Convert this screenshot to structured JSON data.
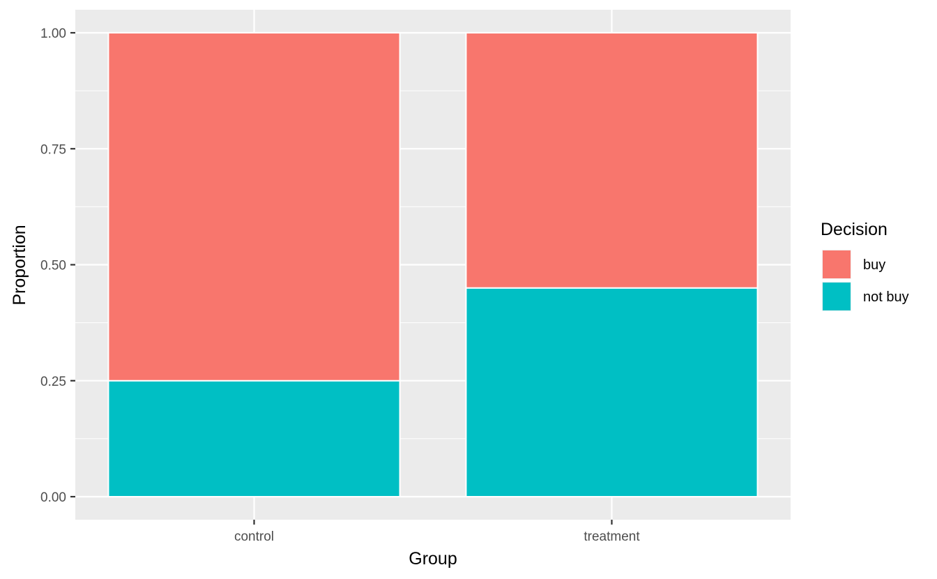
{
  "chart_data": {
    "type": "bar",
    "stacked": true,
    "position": "fill",
    "categories": [
      "control",
      "treatment"
    ],
    "series": [
      {
        "name": "buy",
        "values": [
          0.75,
          0.55
        ],
        "color": "#F8766D"
      },
      {
        "name": "not buy",
        "values": [
          0.25,
          0.45
        ],
        "color": "#00BFC4"
      }
    ],
    "xlabel": "Group",
    "ylabel": "Proportion",
    "ylim": [
      0,
      1
    ],
    "yticks": [
      0.0,
      0.25,
      0.5,
      0.75,
      1.0
    ],
    "ytick_labels": [
      "0.00",
      "0.25",
      "0.50",
      "0.75",
      "1.00"
    ],
    "grid": true,
    "legend": {
      "title": "Decision",
      "position": "right"
    },
    "panel_color": "#EBEBEB",
    "grid_color": "#FFFFFF"
  }
}
